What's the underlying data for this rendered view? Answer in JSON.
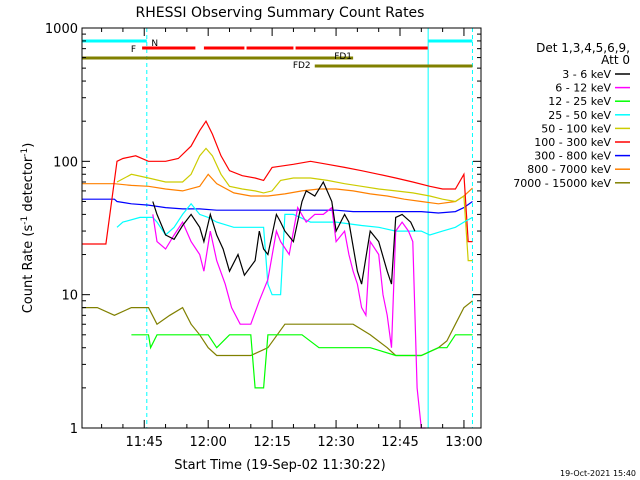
{
  "chart_data": {
    "type": "line",
    "title": "RHESSI Observing Summary Count Rates",
    "xlabel": "Start Time (19-Sep-02 11:30:22)",
    "ylabel_prefix": "Count Rate (s",
    "ylabel_sup": "-1",
    "ylabel_suffix": " detector",
    "ylabel_close": ")",
    "yscale": "log",
    "xlim_minutes": [
      690.4,
      784
    ],
    "ylim": [
      1,
      1000
    ],
    "x_ticks": [
      {
        "label": "11:45",
        "value": 705
      },
      {
        "label": "12:00",
        "value": 720
      },
      {
        "label": "12:15",
        "value": 735
      },
      {
        "label": "12:30",
        "value": 750
      },
      {
        "label": "12:45",
        "value": 765
      },
      {
        "label": "13:00",
        "value": 780
      }
    ],
    "y_ticks": [
      {
        "label": "1",
        "value": 1
      },
      {
        "label": "10",
        "value": 10
      },
      {
        "label": "100",
        "value": 100
      },
      {
        "label": "1000",
        "value": 1000
      }
    ],
    "legend_header": [
      "Det 1,3,4,5,6,9,",
      "Att 0"
    ],
    "legend_placement": "right",
    "series": [
      {
        "name": "3 - 6 keV",
        "color": "#000000",
        "x": [
          690.4,
          698,
          698.5,
          701,
          703,
          706,
          707,
          708,
          710,
          712,
          714,
          716,
          718,
          719,
          720.5,
          722,
          723.5,
          725,
          727,
          728.5,
          731,
          732,
          733,
          734,
          736,
          737,
          738,
          740,
          742,
          743,
          745,
          747,
          749,
          750,
          752,
          753,
          755,
          756,
          758,
          760,
          762,
          763,
          764,
          765.5,
          767.5,
          768.5,
          770
        ],
        "y": [
          null,
          null,
          null,
          null,
          null,
          null,
          50,
          40,
          28,
          26,
          33,
          40,
          32,
          25,
          40,
          28,
          22,
          15,
          20,
          14,
          18,
          30,
          22,
          20,
          40,
          35,
          30,
          25,
          50,
          60,
          55,
          70,
          50,
          30,
          40,
          35,
          15,
          12,
          30,
          25,
          15,
          12,
          38,
          40,
          35,
          30,
          null
        ]
      },
      {
        "name": "6 - 12 keV",
        "color": "#ff00ff",
        "x": [
          690.4,
          706,
          707,
          708,
          710,
          712,
          714,
          716,
          718,
          719,
          720.5,
          722,
          724,
          725.5,
          727.5,
          730,
          732,
          734,
          736,
          737,
          739,
          741,
          743,
          745,
          747,
          749,
          750,
          752,
          753,
          754,
          755,
          756,
          757,
          758,
          760,
          761,
          762,
          763,
          764,
          765.5,
          767,
          768,
          769,
          770,
          771,
          772
        ],
        "y": [
          null,
          null,
          40,
          25,
          22,
          28,
          35,
          25,
          20,
          15,
          30,
          18,
          12,
          8,
          6,
          6,
          9,
          13,
          30,
          25,
          20,
          45,
          35,
          40,
          40,
          45,
          25,
          30,
          20,
          15,
          12,
          8,
          7,
          25,
          20,
          10,
          7,
          4,
          30,
          35,
          30,
          25,
          2,
          1,
          1,
          null
        ]
      },
      {
        "name": "12 - 25 keV",
        "color": "#00ff00",
        "x": [
          690.4,
          696,
          702,
          706,
          706.5,
          708,
          714,
          718,
          720,
          722,
          725,
          727,
          730,
          731,
          733,
          734,
          735,
          736,
          738,
          740,
          742,
          746,
          752,
          758,
          764,
          770,
          774,
          776,
          778,
          782,
          784
        ],
        "y": [
          null,
          null,
          5,
          5,
          4,
          5,
          5,
          5,
          5,
          4,
          5,
          5,
          5,
          2,
          2,
          5,
          5,
          5,
          5,
          5,
          5,
          4,
          4,
          4,
          3.5,
          3.5,
          4,
          4,
          5,
          5,
          null
        ]
      },
      {
        "name": "25 - 50 keV",
        "color": "#00ffff",
        "x": [
          690.4,
          698,
          698.6,
          700,
          704,
          707,
          708,
          710,
          712,
          714,
          716,
          718,
          720,
          722,
          726,
          730,
          733,
          734,
          735,
          737,
          738,
          740,
          744,
          750,
          756,
          760,
          764,
          766,
          768,
          770,
          772,
          775,
          778,
          780,
          782,
          784
        ],
        "y": [
          null,
          null,
          32,
          35,
          38,
          38,
          35,
          28,
          32,
          40,
          48,
          40,
          38,
          35,
          32,
          32,
          32,
          12,
          10,
          10,
          40,
          40,
          35,
          35,
          33,
          32,
          30,
          30,
          30,
          30,
          28,
          30,
          32,
          35,
          38,
          null
        ]
      },
      {
        "name": "50 - 100 keV",
        "color": "#cccc00",
        "x": [
          690.4,
          698,
          698.6,
          702,
          706,
          710,
          714,
          716,
          718,
          719.5,
          721,
          723,
          725,
          728,
          731,
          733,
          735,
          737,
          740,
          744,
          748,
          752,
          756,
          760,
          764,
          768,
          772,
          775,
          778,
          780,
          781,
          782,
          784
        ],
        "y": [
          null,
          null,
          70,
          80,
          75,
          70,
          70,
          80,
          110,
          125,
          110,
          80,
          65,
          62,
          60,
          58,
          60,
          72,
          75,
          75,
          72,
          68,
          65,
          62,
          60,
          58,
          55,
          52,
          50,
          55,
          18,
          18,
          null
        ]
      },
      {
        "name": "100 - 300 keV",
        "color": "#ff0000",
        "x": [
          690.4,
          696,
          698.6,
          700,
          703,
          706,
          710,
          713,
          716,
          718,
          719.5,
          721,
          723,
          725,
          728,
          731,
          733,
          735,
          737,
          740,
          744,
          748,
          752,
          756,
          760,
          764,
          768,
          772,
          775,
          778,
          780,
          781,
          782,
          784
        ],
        "y": [
          24,
          24,
          100,
          105,
          110,
          100,
          100,
          105,
          130,
          170,
          200,
          160,
          110,
          85,
          78,
          75,
          72,
          90,
          92,
          95,
          100,
          95,
          90,
          85,
          80,
          75,
          70,
          65,
          62,
          62,
          80,
          25,
          25,
          null
        ]
      },
      {
        "name": "300 - 800 keV",
        "color": "#0000ff",
        "x": [
          690.4,
          698,
          698.6,
          702,
          706,
          710,
          714,
          718,
          722,
          726,
          730,
          734,
          738,
          742,
          746,
          750,
          754,
          758,
          762,
          766,
          770,
          774,
          778,
          780,
          782,
          784
        ],
        "y": [
          52,
          52,
          50,
          48,
          47,
          45,
          44,
          44,
          43,
          43,
          43,
          43,
          43,
          43,
          43,
          43,
          42,
          42,
          42,
          42,
          42,
          41,
          42,
          45,
          50,
          null
        ]
      },
      {
        "name": "800 - 7000 keV",
        "color": "#ff8000",
        "x": [
          690.4,
          698,
          702,
          706,
          710,
          714,
          718,
          720,
          722,
          726,
          730,
          734,
          738,
          742,
          746,
          750,
          754,
          758,
          762,
          766,
          770,
          774,
          778,
          780,
          782,
          784
        ],
        "y": [
          68,
          68,
          66,
          65,
          62,
          60,
          65,
          80,
          68,
          58,
          55,
          55,
          57,
          60,
          62,
          62,
          60,
          57,
          55,
          52,
          50,
          48,
          50,
          55,
          63,
          null
        ]
      },
      {
        "name": "7000 - 15000 keV",
        "color": "#808000",
        "x": [
          690.4,
          694,
          698,
          702,
          706,
          708,
          711,
          714,
          716,
          718,
          720,
          722,
          726,
          730,
          734,
          738,
          742,
          746,
          750,
          754,
          758,
          762,
          764,
          766,
          770,
          774,
          776,
          778,
          780,
          782,
          784
        ],
        "y": [
          8,
          8,
          7,
          8,
          8,
          6,
          7,
          8,
          6,
          5,
          4,
          3.5,
          3.5,
          3.5,
          4,
          6,
          6,
          6,
          6,
          6,
          5,
          4,
          3.5,
          3.5,
          3.5,
          4,
          4.5,
          6,
          8,
          9,
          null
        ]
      }
    ],
    "status_bars": [
      {
        "name": "N",
        "label": "N",
        "color": "#00ffff",
        "level": "top",
        "segments": [
          [
            690.4,
            705.6
          ],
          [
            771.6,
            782
          ]
        ]
      },
      {
        "name": "F",
        "label": "F",
        "color": "#ff0000",
        "level": "upper",
        "segments": [
          [
            704.5,
            717
          ],
          [
            719,
            728.5
          ],
          [
            729,
            740
          ],
          [
            740.5,
            771.5
          ]
        ]
      },
      {
        "name": "FD1",
        "label": "FD1",
        "color": "#808000",
        "level": "middle",
        "segments": [
          [
            690.4,
            754
          ]
        ]
      },
      {
        "name": "FD2",
        "label": "FD2",
        "color": "#808000",
        "level": "lower",
        "segments": [
          [
            745,
            782
          ]
        ]
      }
    ],
    "vertical_markers": [
      {
        "x": 690.4,
        "style": "solid"
      },
      {
        "x": 705.6,
        "style": "dashed"
      },
      {
        "x": 771.6,
        "style": "solid"
      },
      {
        "x": 782,
        "style": "dashed"
      }
    ]
  },
  "footer_stamp": "19-Oct-2021 15:40"
}
